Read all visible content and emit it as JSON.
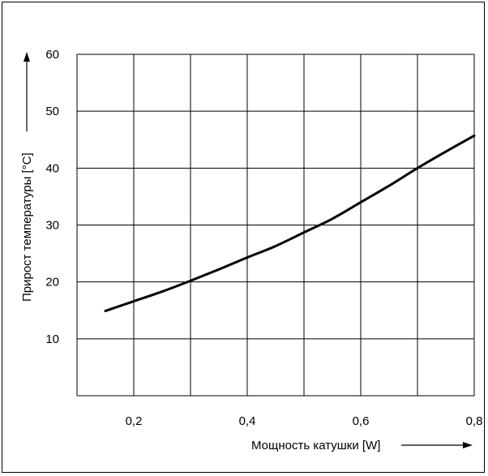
{
  "chart_data": {
    "type": "line",
    "title": "",
    "xlabel": "Мощность катушки  [W]",
    "ylabel": "Прирост температуры [°C]",
    "xlim": [
      0.1,
      0.8
    ],
    "ylim": [
      0,
      60
    ],
    "x_ticks": [
      0.2,
      0.4,
      0.6,
      0.8
    ],
    "x_tick_labels": [
      "0,2",
      "0,4",
      "0,6",
      "0,8"
    ],
    "y_ticks": [
      10,
      20,
      30,
      40,
      50,
      60
    ],
    "y_tick_labels": [
      "10",
      "20",
      "30",
      "40",
      "50",
      "60"
    ],
    "grid": true,
    "series": [
      {
        "x": [
          0.15,
          0.2,
          0.25,
          0.3,
          0.35,
          0.4,
          0.45,
          0.5,
          0.55,
          0.6,
          0.65,
          0.7,
          0.75,
          0.8
        ],
        "y": [
          14.9,
          16.6,
          18.3,
          20.2,
          22.2,
          24.3,
          26.3,
          28.7,
          31.1,
          34.0,
          36.9,
          40.0,
          42.9,
          45.7
        ]
      }
    ],
    "line_color": "#000000"
  }
}
